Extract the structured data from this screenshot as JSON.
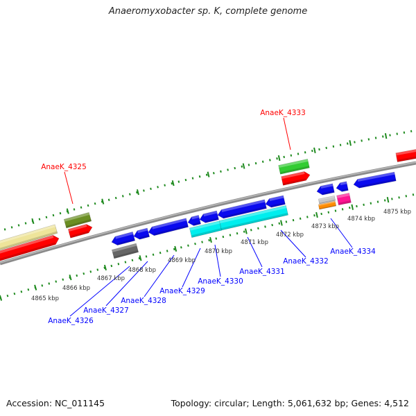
{
  "title": "Anaeromyxobacter sp. K, complete genome",
  "footer": {
    "accession": "Accession: NC_011145",
    "stats": "Topology: circular; Length: 5,061,632 bp; Genes: 4,512"
  },
  "scale_labels": [
    "4865 kbp",
    "4866 kbp",
    "4867 kbp",
    "4868 kbp",
    "4869 kbp",
    "4870 kbp",
    "4871 kbp",
    "4872 kbp",
    "4873 kbp",
    "4874 kbp",
    "4875 kbp"
  ],
  "gene_labels": {
    "forward": [
      "AnaeK_4325",
      "AnaeK_4333"
    ],
    "reverse": [
      "AnaeK_4326",
      "AnaeK_4327",
      "AnaeK_4328",
      "AnaeK_4329",
      "AnaeK_4330",
      "AnaeK_4331",
      "AnaeK_4332",
      "AnaeK_4334"
    ]
  },
  "colors": {
    "forward_label": "#ff0000",
    "reverse_label": "#0000ff",
    "tick": "#1e8a1e",
    "backbone": "#8a8a8a",
    "gene_red": "#ff0000",
    "gene_blue": "#0a0aee",
    "gene_cyan": "#00eeee",
    "gene_khaki": "#eee49a",
    "gene_olive": "#6b8e23",
    "gene_green": "#33cc33",
    "gene_darkgray": "#666666",
    "gene_lightgray": "#c8c8c8",
    "gene_orange": "#ff8c00",
    "gene_pink": "#ff1493"
  }
}
